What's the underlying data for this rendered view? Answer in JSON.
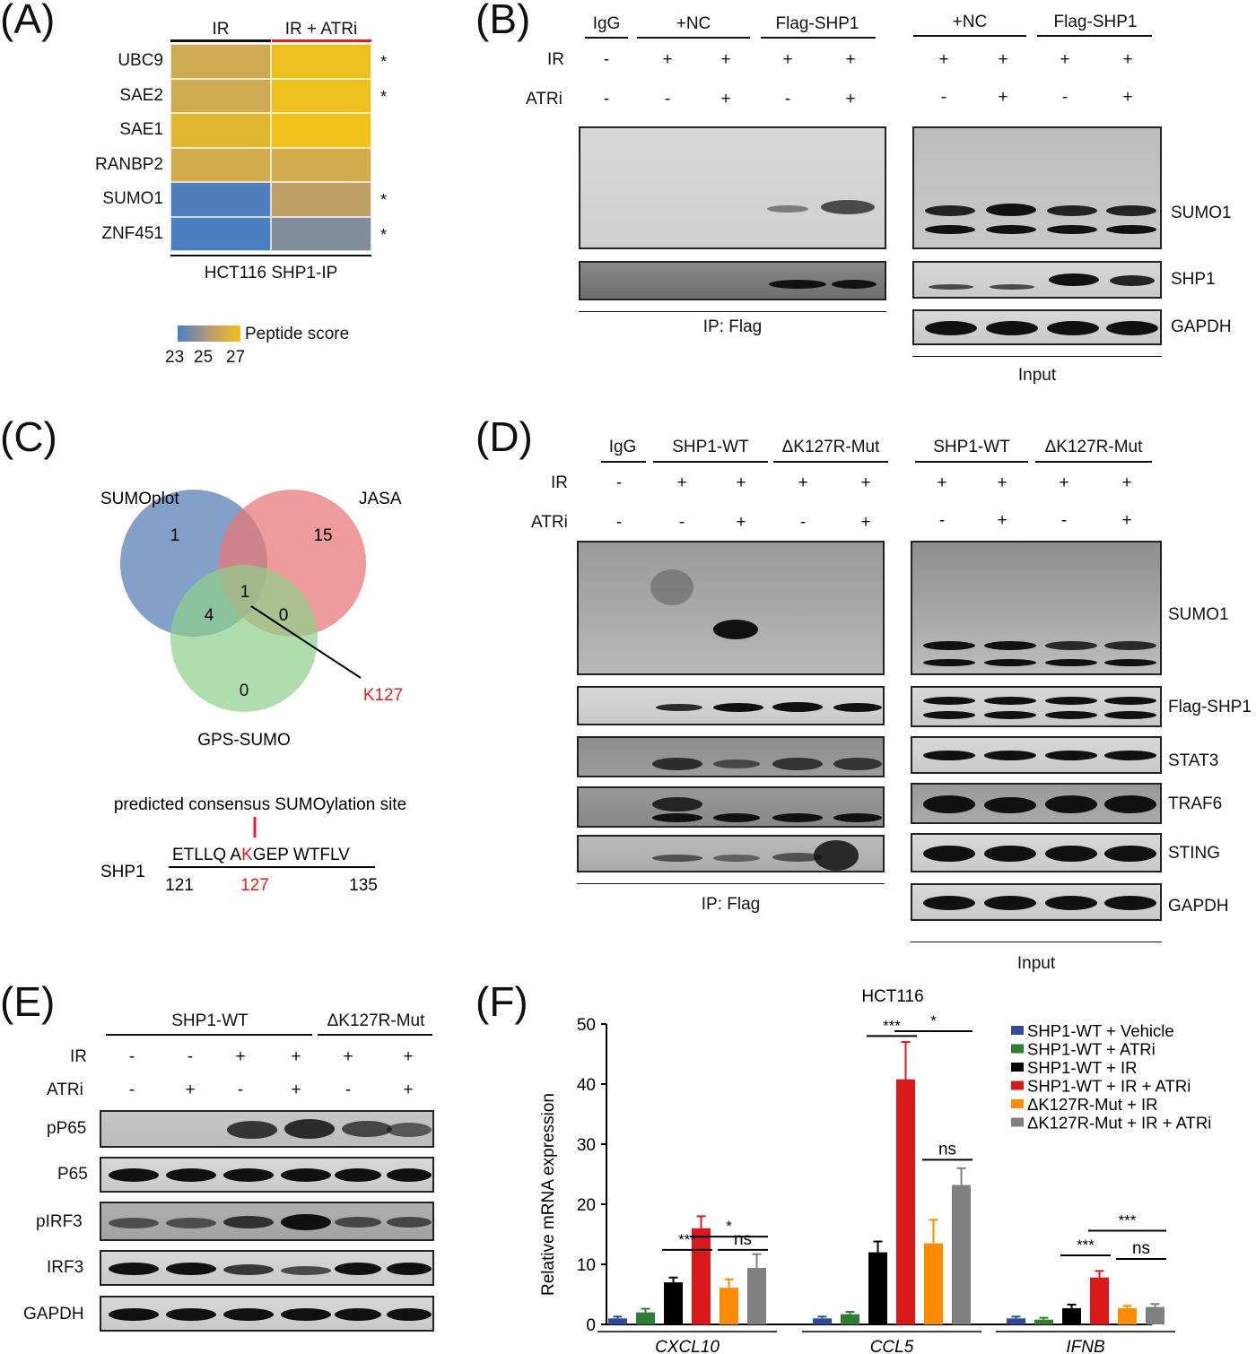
{
  "panels": {
    "A": "(A)",
    "B": "(B)",
    "C": "(C)",
    "D": "(D)",
    "E": "(E)",
    "F": "(F)"
  },
  "panelA": {
    "col_headers": [
      "IR",
      "IR + ATRi"
    ],
    "rows": [
      "UBC9",
      "SAE2",
      "SAE1",
      "RANBP2",
      "SUMO1",
      "ZNF451"
    ],
    "stars": [
      "*",
      "*",
      "",
      "",
      "*",
      "*"
    ],
    "scores": [
      [
        25.8,
        26.9
      ],
      [
        25.8,
        26.9
      ],
      [
        26.5,
        27.2
      ],
      [
        25.9,
        25.9
      ],
      [
        23.1,
        25.3
      ],
      [
        23.0,
        24.0
      ]
    ],
    "footer": "HCT116 SHP1-IP",
    "legend_title": "Peptide score",
    "legend_ticks": [
      "23",
      "25",
      "27"
    ],
    "colors": {
      "low": "#4a7fc1",
      "mid": "#b79a76",
      "high": "#f0c21a"
    }
  },
  "panelB": {
    "groups_ip": [
      "IgG",
      "+NC",
      "Flag-SHP1"
    ],
    "groups_input": [
      "+NC",
      "Flag-SHP1"
    ],
    "row_labels": [
      "IR",
      "ATRi"
    ],
    "ip_ir": [
      "-",
      "+",
      "+",
      "+",
      "+"
    ],
    "ip_atri": [
      "-",
      "-",
      "+",
      "-",
      "+"
    ],
    "in_ir": [
      "+",
      "+",
      "+",
      "+"
    ],
    "in_atri": [
      "-",
      "+",
      "-",
      "+"
    ],
    "blot_labels": [
      "SUMO1",
      "SHP1",
      "GAPDH"
    ],
    "ip_footer": "IP: Flag",
    "input_footer": "Input"
  },
  "panelC": {
    "venn_labels": [
      "SUMOplot",
      "JASA",
      "GPS-SUMO"
    ],
    "counts": {
      "a": "1",
      "b": "15",
      "c": "0",
      "ab": "",
      "ac": "4",
      "bc": "0",
      "abc": "1"
    },
    "site": "K127",
    "consensus_title": "predicted consensus SUMOylation site",
    "protein": "SHP1",
    "seq_pre": "ETLLQ A",
    "seq_k": "K",
    "seq_post": "GEP WTFLV",
    "pos_start": "121",
    "pos_mid": "127",
    "pos_end": "135",
    "colors": {
      "blue": "#5b80b5",
      "red": "#e87a7a",
      "green": "#8fcf8a",
      "accent": "#e02020"
    }
  },
  "panelD": {
    "groups_ip": [
      "IgG",
      "SHP1-WT",
      "ΔK127R-Mut"
    ],
    "groups_input": [
      "SHP1-WT",
      "ΔK127R-Mut"
    ],
    "row_labels": [
      "IR",
      "ATRi"
    ],
    "ip_ir": [
      "-",
      "+",
      "+",
      "+",
      "+"
    ],
    "ip_atri": [
      "-",
      "-",
      "+",
      "-",
      "+"
    ],
    "in_ir": [
      "+",
      "+",
      "+",
      "+"
    ],
    "in_atri": [
      "-",
      "+",
      "-",
      "+"
    ],
    "blot_labels": [
      "SUMO1",
      "Flag-SHP1",
      "STAT3",
      "TRAF6",
      "STING",
      "GAPDH"
    ],
    "ip_footer": "IP: Flag",
    "input_footer": "Input"
  },
  "panelE": {
    "groups": [
      "SHP1-WT",
      "ΔK127R-Mut"
    ],
    "row_labels": [
      "IR",
      "ATRi"
    ],
    "ir": [
      "-",
      "-",
      "+",
      "+",
      "+",
      "+"
    ],
    "atri": [
      "-",
      "+",
      "-",
      "+",
      "-",
      "+"
    ],
    "blot_labels": [
      "pP65",
      "P65",
      "pIRF3",
      "IRF3",
      "GAPDH"
    ]
  },
  "chart_data": {
    "type": "bar",
    "title": "HCT116",
    "ylabel": "Relative mRNA expression",
    "ylim": [
      0,
      50
    ],
    "yticks": [
      "0",
      "10",
      "20",
      "30",
      "40",
      "50"
    ],
    "categories": [
      "CXCL10",
      "CCL5",
      "IFNB"
    ],
    "series": [
      {
        "name": "SHP1-WT + Vehicle",
        "color": "#2f4b9a",
        "values": [
          1.0,
          1.0,
          1.0
        ],
        "errors": [
          0.3,
          0.3,
          0.3
        ]
      },
      {
        "name": "SHP1-WT + ATRi",
        "color": "#2e7d32",
        "values": [
          2.0,
          1.7,
          0.8
        ],
        "errors": [
          0.6,
          0.4,
          0.3
        ]
      },
      {
        "name": "SHP1-WT + IR",
        "color": "#000000",
        "values": [
          7.0,
          12.0,
          2.7
        ],
        "errors": [
          0.8,
          1.8,
          0.6
        ]
      },
      {
        "name": "SHP1-WT + IR + ATRi",
        "color": "#d7191c",
        "values": [
          16.0,
          40.8,
          7.8
        ],
        "errors": [
          2.0,
          6.2,
          1.1
        ]
      },
      {
        "name": "ΔK127R-Mut + IR",
        "color": "#ff8c00",
        "values": [
          6.1,
          13.5,
          2.7
        ],
        "errors": [
          1.4,
          3.9,
          0.4
        ]
      },
      {
        "name": "ΔK127R-Mut + IR + ATRi",
        "color": "#808080",
        "values": [
          9.4,
          23.2,
          2.9
        ],
        "errors": [
          2.3,
          2.8,
          0.5
        ]
      }
    ],
    "significance": [
      {
        "cat": 0,
        "from": 2,
        "to": 3,
        "y": 12.4,
        "label": "***"
      },
      {
        "cat": 0,
        "from": 3,
        "to": 5,
        "y": 14.6,
        "label": "*"
      },
      {
        "cat": 0,
        "from": 4,
        "to": 5,
        "y": 12.4,
        "label": "ns"
      },
      {
        "cat": 1,
        "from": 2,
        "to": 3,
        "y": 48.0,
        "label": "***"
      },
      {
        "cat": 1,
        "from": 3,
        "to": 5,
        "y": 48.8,
        "label": "*"
      },
      {
        "cat": 1,
        "from": 4,
        "to": 5,
        "y": 27.4,
        "label": "ns"
      },
      {
        "cat": 2,
        "from": 2,
        "to": 3,
        "y": 11.5,
        "label": "***"
      },
      {
        "cat": 2,
        "from": 3,
        "to": 5,
        "y": 15.6,
        "label": "***"
      },
      {
        "cat": 2,
        "from": 4,
        "to": 5,
        "y": 10.9,
        "label": "ns"
      }
    ]
  }
}
